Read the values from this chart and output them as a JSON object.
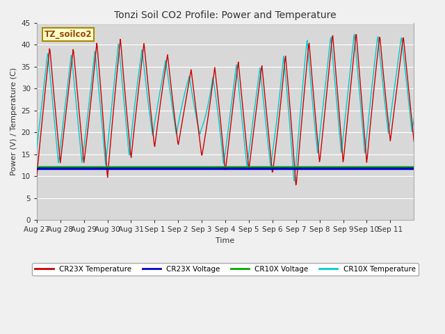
{
  "title": "Tonzi Soil CO2 Profile: Power and Temperature",
  "xlabel": "Time",
  "ylabel": "Power (V) / Temperature (C)",
  "ylim": [
    0,
    45
  ],
  "yticks": [
    0,
    5,
    10,
    15,
    20,
    25,
    30,
    35,
    40,
    45
  ],
  "x_labels": [
    "Aug 27",
    "Aug 28",
    "Aug 29",
    "Aug 30",
    "Aug 31",
    "Sep 1",
    "Sep 2",
    "Sep 3",
    "Sep 4",
    "Sep 5",
    "Sep 6",
    "Sep 7",
    "Sep 8",
    "Sep 9",
    "Sep 10",
    "Sep 11"
  ],
  "cr23x_voltage_val": 11.8,
  "cr10x_voltage_val": 12.1,
  "color_cr23x_temp": "#cc0000",
  "color_cr23x_volt": "#0000cc",
  "color_cr10x_volt": "#00aa00",
  "color_cr10x_temp": "#00cccc",
  "annotation_text": "TZ_soilco2",
  "fig_bg_color": "#f0f0f0",
  "plot_bg_color": "#d8d8d8"
}
